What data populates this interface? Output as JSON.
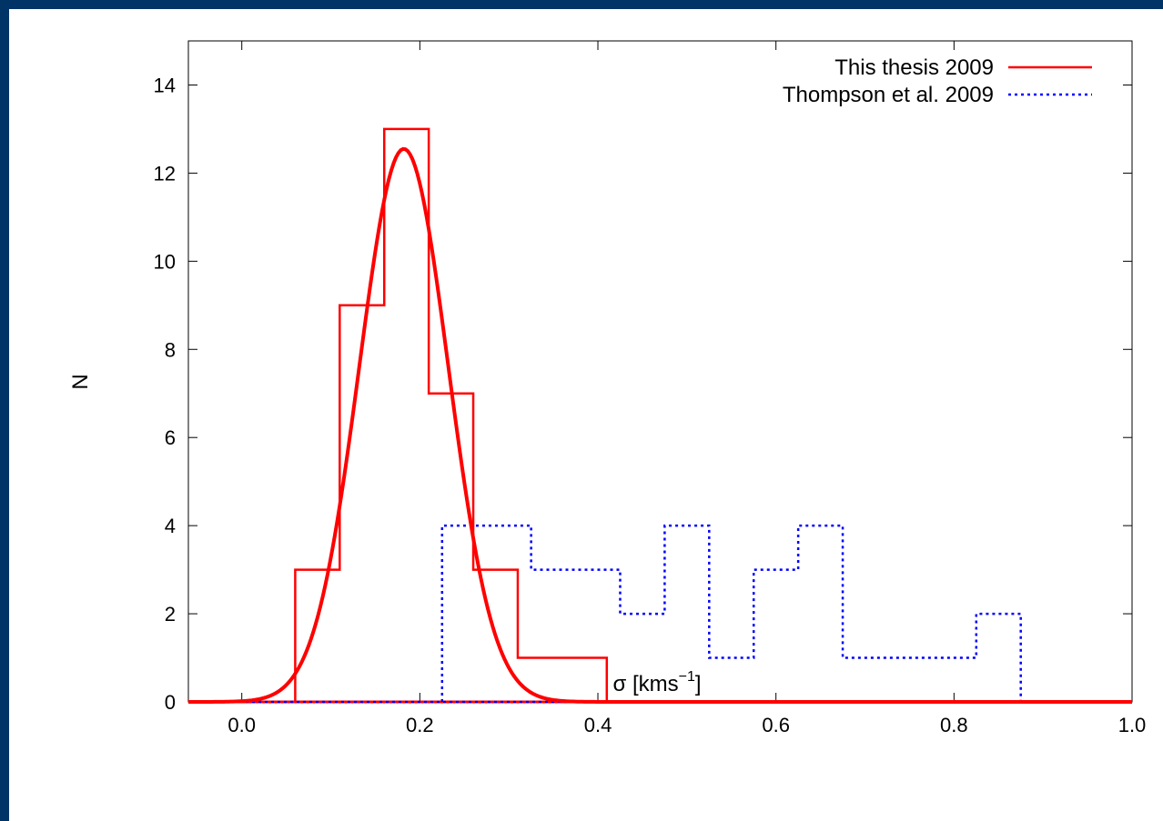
{
  "chart_data": {
    "type": "histogram",
    "xlabel_main": "σ [kms",
    "xlabel_sup": "−1",
    "xlabel_end": "]",
    "ylabel": "N",
    "xlim": [
      -0.06,
      1.0
    ],
    "ylim": [
      0,
      15
    ],
    "xticks": [
      0.0,
      0.2,
      0.4,
      0.6,
      0.8,
      1.0
    ],
    "xtick_labels": [
      "0.0",
      "0.2",
      "0.4",
      "0.6",
      "0.8",
      "1.0"
    ],
    "yticks": [
      0,
      2,
      4,
      6,
      8,
      10,
      12,
      14
    ],
    "ytick_labels": [
      "0",
      "2",
      "4",
      "6",
      "8",
      "10",
      "12",
      "14"
    ],
    "legend_position": "top-right",
    "series": [
      {
        "name": "This thesis 2009",
        "style": "solid",
        "color": "#ff0000",
        "bin_edges": [
          0.06,
          0.11,
          0.16,
          0.21,
          0.26,
          0.31,
          0.36,
          0.41
        ],
        "counts": [
          3,
          9,
          13,
          7,
          3,
          1,
          1
        ]
      },
      {
        "name": "Thompson et al. 2009",
        "style": "dotted",
        "color": "#0000ff",
        "bin_edges": [
          0.225,
          0.275,
          0.325,
          0.375,
          0.425,
          0.475,
          0.525,
          0.575,
          0.625,
          0.675,
          0.725,
          0.775,
          0.825,
          0.875
        ],
        "counts": [
          4,
          4,
          3,
          3,
          2,
          4,
          1,
          3,
          4,
          1,
          1,
          1,
          2
        ]
      }
    ],
    "fit": {
      "type": "gaussian",
      "color": "#ff0000",
      "amplitude": 12.55,
      "mean": 0.182,
      "sigma": 0.05
    }
  }
}
